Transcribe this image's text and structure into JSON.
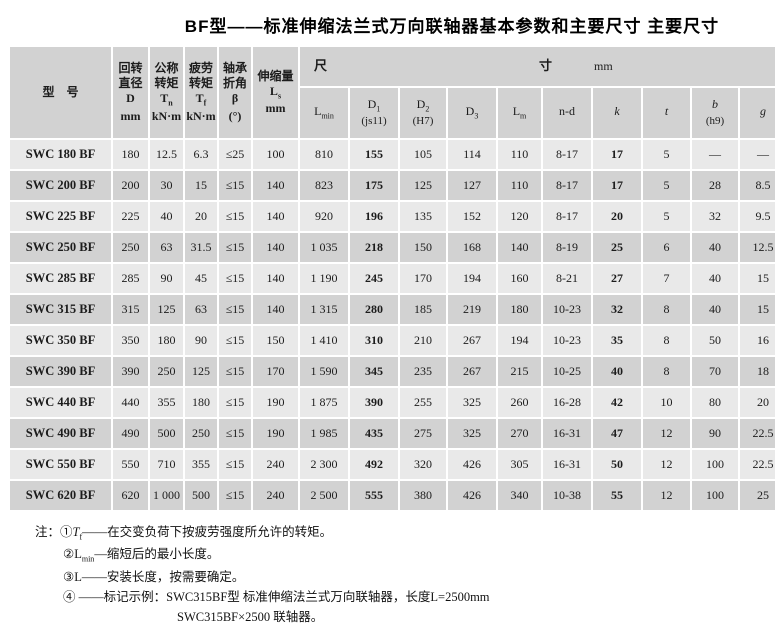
{
  "title": "BF型——标准伸缩法兰式万向联轴器基本参数和主要尺寸 主要尺寸",
  "table": {
    "main_headers": [
      {
        "lines": [
          "型　号"
        ]
      },
      {
        "lines": [
          "回转",
          "直径"
        ],
        "sym": "D",
        "unit": "mm"
      },
      {
        "lines": [
          "公称",
          "转矩"
        ],
        "sym": "T",
        "sub": "n",
        "unit": "kN·m"
      },
      {
        "lines": [
          "疲劳",
          "转矩"
        ],
        "sym": "T",
        "sub": "f",
        "unit": "kN·m"
      },
      {
        "lines": [
          "轴承",
          "折角"
        ],
        "sym": "β",
        "unit": "(°)"
      },
      {
        "lines": [
          "伸缩量"
        ],
        "sym": "L",
        "sub": "s",
        "unit": "mm"
      }
    ],
    "size_header": {
      "left": "尺",
      "right": "寸",
      "unit": "mm"
    },
    "subheaders": [
      {
        "main": "L",
        "sub": "min"
      },
      {
        "main": "D",
        "sub": "1",
        "note": "(js11)"
      },
      {
        "main": "D",
        "sub": "2",
        "note": "(H7)"
      },
      {
        "main": "D",
        "sub": "3"
      },
      {
        "main": "L",
        "sub": "m"
      },
      {
        "main": "n-d"
      },
      {
        "main": "k"
      },
      {
        "main": "t"
      },
      {
        "main": "b",
        "note": "(h9)"
      },
      {
        "main": "g"
      }
    ],
    "rows": [
      {
        "cells": [
          "SWC 180 BF",
          "180",
          "12.5",
          "6.3",
          "≤25",
          "100",
          "810",
          "155",
          "105",
          "114",
          "110",
          "8-17",
          "17",
          "5",
          "—",
          "—"
        ]
      },
      {
        "cells": [
          "SWC 200 BF",
          "200",
          "30",
          "15",
          "≤15",
          "140",
          "823",
          "175",
          "125",
          "127",
          "110",
          "8-17",
          "17",
          "5",
          "28",
          "8.5"
        ]
      },
      {
        "cells": [
          "SWC 225 BF",
          "225",
          "40",
          "20",
          "≤15",
          "140",
          "920",
          "196",
          "135",
          "152",
          "120",
          "8-17",
          "20",
          "5",
          "32",
          "9.5"
        ]
      },
      {
        "cells": [
          "SWC 250 BF",
          "250",
          "63",
          "31.5",
          "≤15",
          "140",
          "1 035",
          "218",
          "150",
          "168",
          "140",
          "8-19",
          "25",
          "6",
          "40",
          "12.5"
        ]
      },
      {
        "cells": [
          "SWC 285 BF",
          "285",
          "90",
          "45",
          "≤15",
          "140",
          "1 190",
          "245",
          "170",
          "194",
          "160",
          "8-21",
          "27",
          "7",
          "40",
          "15"
        ]
      },
      {
        "cells": [
          "SWC 315 BF",
          "315",
          "125",
          "63",
          "≤15",
          "140",
          "1 315",
          "280",
          "185",
          "219",
          "180",
          "10-23",
          "32",
          "8",
          "40",
          "15"
        ]
      },
      {
        "cells": [
          "SWC 350 BF",
          "350",
          "180",
          "90",
          "≤15",
          "150",
          "1 410",
          "310",
          "210",
          "267",
          "194",
          "10-23",
          "35",
          "8",
          "50",
          "16"
        ]
      },
      {
        "cells": [
          "SWC 390 BF",
          "390",
          "250",
          "125",
          "≤15",
          "170",
          "1 590",
          "345",
          "235",
          "267",
          "215",
          "10-25",
          "40",
          "8",
          "70",
          "18"
        ]
      },
      {
        "cells": [
          "SWC 440 BF",
          "440",
          "355",
          "180",
          "≤15",
          "190",
          "1 875",
          "390",
          "255",
          "325",
          "260",
          "16-28",
          "42",
          "10",
          "80",
          "20"
        ]
      },
      {
        "cells": [
          "SWC 490 BF",
          "490",
          "500",
          "250",
          "≤15",
          "190",
          "1 985",
          "435",
          "275",
          "325",
          "270",
          "16-31",
          "47",
          "12",
          "90",
          "22.5"
        ]
      },
      {
        "cells": [
          "SWC 550 BF",
          "550",
          "710",
          "355",
          "≤15",
          "240",
          "2 300",
          "492",
          "320",
          "426",
          "305",
          "16-31",
          "50",
          "12",
          "100",
          "22.5"
        ]
      },
      {
        "cells": [
          "SWC 620 BF",
          "620",
          "1 000",
          "500",
          "≤15",
          "240",
          "2 500",
          "555",
          "380",
          "426",
          "340",
          "10-38",
          "55",
          "12",
          "100",
          "25"
        ]
      }
    ]
  },
  "notes": {
    "label": "注：",
    "items": [
      {
        "num": "①",
        "sym": "T",
        "sub": "f",
        "text": "——在交变负荷下按疲劳强度所允许的转矩。"
      },
      {
        "num": "②",
        "sym": "L",
        "sub": "min",
        "text": "—缩短后的最小长度。"
      },
      {
        "num": "③",
        "sym": "L",
        "text": "——安装长度，按需要确定。"
      },
      {
        "num": "④",
        "text": " ——标记示例：SWC315BF型 标准伸缩法兰式万向联轴器，长度L=2500mm",
        "text2": "SWC315BF×2500 联轴器。"
      }
    ]
  }
}
